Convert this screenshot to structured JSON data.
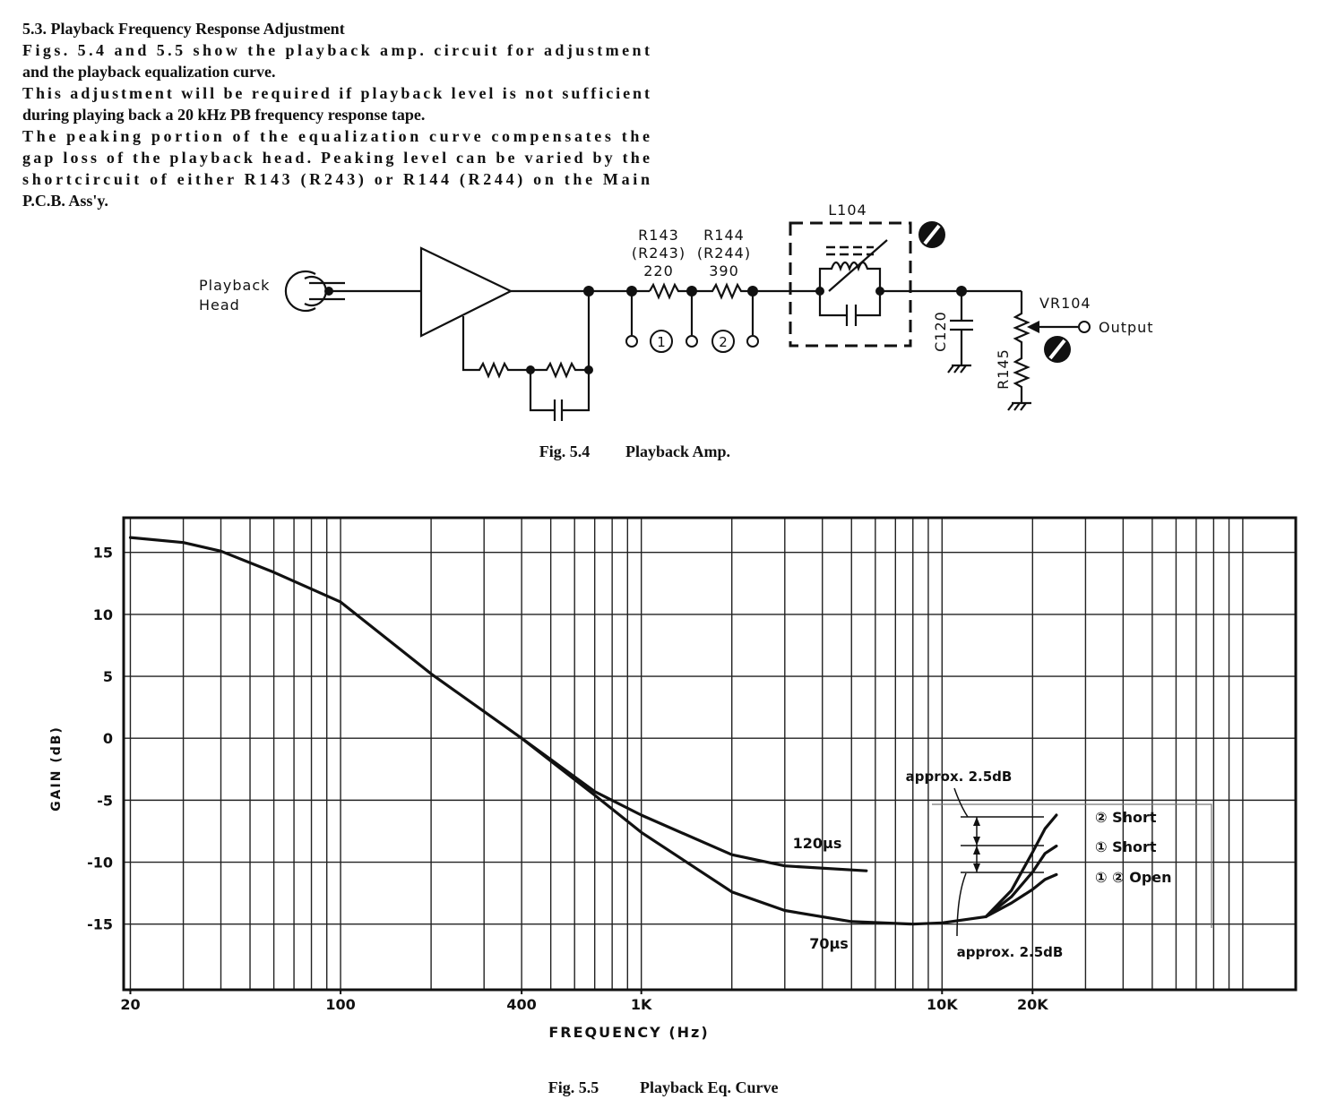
{
  "section": {
    "heading": "5.3. Playback Frequency Response Adjustment",
    "lines": [
      "Figs. 5.4 and 5.5 show the playback amp. circuit for adjustment",
      "and the playback equalization curve.",
      "This adjustment will be required if playback level is not sufficient",
      "during playing back a 20 kHz PB frequency response tape.",
      "The peaking portion of the equalization curve compensates the",
      "gap loss of the playback head. Peaking level can be varied by the",
      "shortcircuit of either R143 (R243) or R144 (R244) on the Main",
      "P.C.B. Ass'y."
    ]
  },
  "diagram": {
    "head_label": [
      "Playback",
      "Head"
    ],
    "r143": [
      "R143",
      "(R243)",
      "220"
    ],
    "r144": [
      "R144",
      "(R244)",
      "390"
    ],
    "l104": "L104",
    "c120": "C120",
    "vr104": "VR104",
    "r145": "R145",
    "output": "Output",
    "tap_1": "1",
    "tap_2": "2",
    "caption": {
      "number": "Fig. 5.4",
      "title": "Playback Amp."
    }
  },
  "chart_data": {
    "type": "line",
    "xlabel": "FREQUENCY (Hz)",
    "ylabel": "GAIN (dB)",
    "xscale": "log",
    "grid": true,
    "color": "#111111",
    "xlim": [
      19,
      150000
    ],
    "ylim": [
      -20.3,
      17.8
    ],
    "xticks": [
      20,
      100,
      400,
      {
        "value": 1000,
        "label": "1K"
      },
      {
        "value": 10000,
        "label": "10K"
      },
      {
        "value": 20000,
        "label": "20K"
      }
    ],
    "xgrid": [
      20,
      30,
      40,
      50,
      60,
      70,
      80,
      90,
      100,
      200,
      300,
      400,
      500,
      600,
      700,
      800,
      900,
      1000,
      2000,
      3000,
      4000,
      5000,
      6000,
      7000,
      8000,
      9000,
      10000,
      20000,
      30000,
      40000,
      50000,
      60000,
      70000,
      80000,
      90000,
      100000
    ],
    "yticks": [
      -15,
      -10,
      -5,
      0,
      5,
      10,
      15
    ],
    "series": [
      {
        "name": "120µs",
        "color": "#111111",
        "x": [
          400,
          700,
          1000,
          2000,
          3000,
          5600
        ],
        "values": [
          0.0,
          -4.3,
          -6.2,
          -9.4,
          -10.3,
          -10.7
        ]
      },
      {
        "name": "70µs",
        "color": "#111111",
        "x": [
          20,
          30,
          40,
          60,
          100,
          200,
          400,
          700,
          1000,
          2000,
          3000,
          5000,
          8000,
          10000,
          14000
        ],
        "values": [
          16.2,
          15.8,
          15.1,
          13.4,
          11.0,
          5.2,
          0.0,
          -4.6,
          -7.6,
          -12.4,
          -13.9,
          -14.8,
          -15.0,
          -14.9,
          -14.4
        ]
      },
      {
        "name": "② Short",
        "color": "#111111",
        "x": [
          14000,
          17000,
          20000,
          22000,
          24000
        ],
        "values": [
          -14.4,
          -12.3,
          -9.2,
          -7.3,
          -6.2
        ]
      },
      {
        "name": "① Short",
        "color": "#111111",
        "x": [
          14000,
          17000,
          20000,
          22000,
          24000
        ],
        "values": [
          -14.4,
          -12.8,
          -10.8,
          -9.3,
          -8.7
        ]
      },
      {
        "name": "① ② Open",
        "color": "#111111",
        "x": [
          14000,
          17000,
          20000,
          22000,
          24000
        ],
        "values": [
          -14.4,
          -13.3,
          -12.2,
          -11.4,
          -11.0
        ]
      }
    ],
    "annotations": [
      "approx. 2.5dB",
      "approx. 2.5dB"
    ],
    "caption": {
      "number": "Fig. 5.5",
      "title": "Playback Eq. Curve"
    }
  }
}
